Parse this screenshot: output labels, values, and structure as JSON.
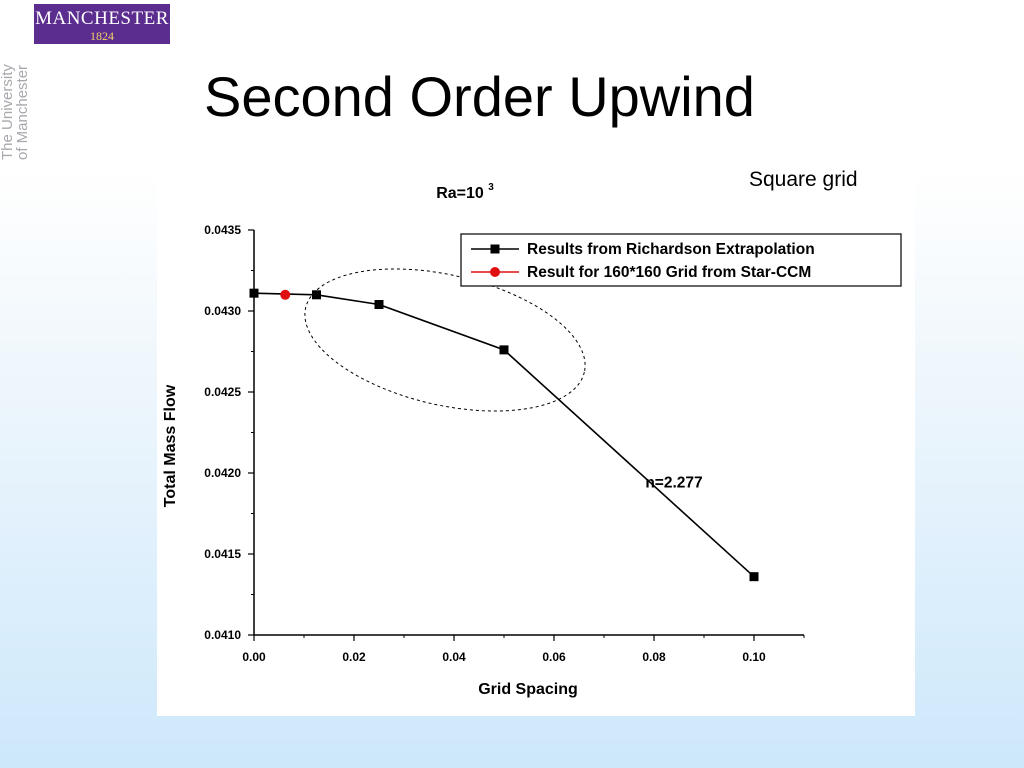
{
  "slide": {
    "title": "Second Order Upwind",
    "grid_note": "Square grid"
  },
  "logo": {
    "word": "MANCHESTER",
    "year": "1824",
    "side_text_line1": "The University",
    "side_text_line2": "of Manchester"
  },
  "colors": {
    "logo_purple": "#5b2d8e",
    "logo_gold": "#f3d36a",
    "series_black": "#000000",
    "series_red": "#e01010"
  },
  "chart_data": {
    "type": "line",
    "title_base": "Ra=10",
    "title_exponent": "3",
    "xlabel": "Grid Spacing",
    "ylabel": "Total Mass Flow",
    "xlim": [
      0.0,
      0.11
    ],
    "ylim": [
      0.041,
      0.0435
    ],
    "xticks": [
      "0.00",
      "0.02",
      "0.04",
      "0.06",
      "0.08",
      "0.10"
    ],
    "yticks": [
      "0.0410",
      "0.0415",
      "0.0420",
      "0.0425",
      "0.0430",
      "0.0435"
    ],
    "legend_position": "top-right",
    "grid": false,
    "series": [
      {
        "name": "Results from Richardson Extrapolation",
        "color": "#000000",
        "marker": "square",
        "x": [
          0.0,
          0.0125,
          0.025,
          0.05,
          0.1
        ],
        "y": [
          0.04311,
          0.0431,
          0.04304,
          0.04276,
          0.04136
        ]
      },
      {
        "name": "Result for 160*160 Grid from Star-CCM",
        "color": "#e01010",
        "marker": "circle",
        "x": [
          0.00625
        ],
        "y": [
          0.0431
        ]
      }
    ],
    "annotations": [
      {
        "text": "n=2.277",
        "x": 0.084,
        "y": 0.04191
      }
    ]
  }
}
